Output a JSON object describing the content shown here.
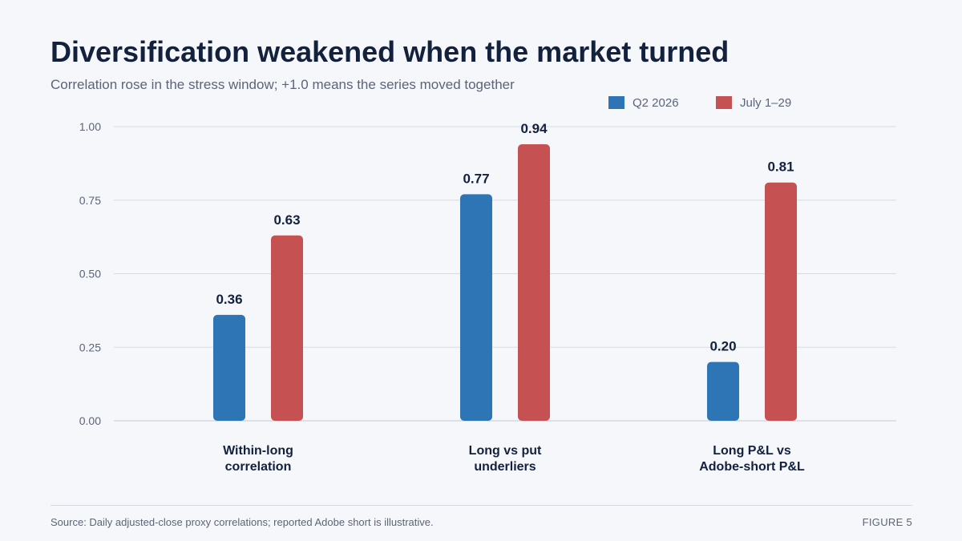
{
  "title": "Diversification weakened when the market turned",
  "subtitle": "Correlation rose in the stress window; +1.0 means the series moved together",
  "source": "Source: Daily adjusted-close proxy correlations; reported Adobe short is illustrative.",
  "figure_label": "FIGURE 5",
  "chart_data": {
    "type": "bar",
    "categories": [
      [
        "Within-long",
        "correlation"
      ],
      [
        "Long vs put",
        "underliers"
      ],
      [
        "Long P&L vs",
        "Adobe-short P&L"
      ]
    ],
    "series": [
      {
        "name": "Q2 2026",
        "color": "#2e75b6",
        "values": [
          0.36,
          0.77,
          0.2
        ],
        "labels": [
          "0.36",
          "0.77",
          "0.20"
        ]
      },
      {
        "name": "July 1–29",
        "color": "#c65153",
        "values": [
          0.63,
          0.94,
          0.81
        ],
        "labels": [
          "0.63",
          "0.94",
          "0.81"
        ]
      }
    ],
    "ylim": [
      0,
      1
    ],
    "yticks": [
      0,
      0.25,
      0.5,
      0.75,
      1.0
    ],
    "ytick_labels": [
      "0.00",
      "0.25",
      "0.50",
      "0.75",
      "1.00"
    ],
    "grid": true,
    "legend_position": "top-right",
    "data_labels": true
  }
}
